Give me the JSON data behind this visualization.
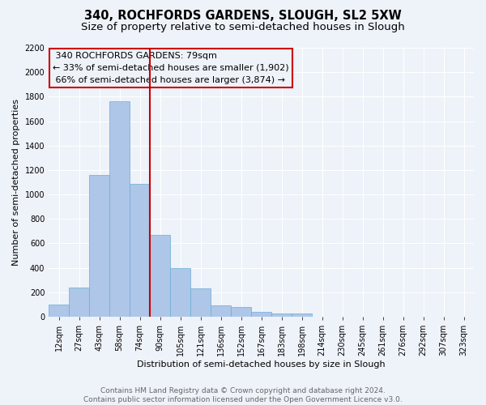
{
  "title": "340, ROCHFORDS GARDENS, SLOUGH, SL2 5XW",
  "subtitle": "Size of property relative to semi-detached houses in Slough",
  "xlabel": "Distribution of semi-detached houses by size in Slough",
  "ylabel": "Number of semi-detached properties",
  "footer_line1": "Contains HM Land Registry data © Crown copyright and database right 2024.",
  "footer_line2": "Contains public sector information licensed under the Open Government Licence v3.0.",
  "bar_labels": [
    "12sqm",
    "27sqm",
    "43sqm",
    "58sqm",
    "74sqm",
    "90sqm",
    "105sqm",
    "121sqm",
    "136sqm",
    "152sqm",
    "167sqm",
    "183sqm",
    "198sqm",
    "214sqm",
    "230sqm",
    "245sqm",
    "261sqm",
    "276sqm",
    "292sqm",
    "307sqm",
    "323sqm"
  ],
  "bar_values": [
    100,
    240,
    1160,
    1760,
    1090,
    670,
    400,
    235,
    90,
    80,
    40,
    30,
    25,
    0,
    0,
    0,
    0,
    0,
    0,
    0,
    0
  ],
  "bar_color": "#aec6e8",
  "bar_edgecolor": "#6aaed6",
  "property_label": "340 ROCHFORDS GARDENS: 79sqm",
  "pct_smaller": 33,
  "count_smaller": 1902,
  "pct_larger": 66,
  "count_larger": 3874,
  "vline_bar_index": 4,
  "ylim": [
    0,
    2200
  ],
  "yticks": [
    0,
    200,
    400,
    600,
    800,
    1000,
    1200,
    1400,
    1600,
    1800,
    2000,
    2200
  ],
  "background_color": "#eef2f9",
  "axes_background": "#eef2f9",
  "grid_color": "#ffffff",
  "annotation_box_edgecolor": "#cc0000",
  "vline_color": "#cc0000",
  "title_fontsize": 10.5,
  "subtitle_fontsize": 9.5,
  "label_fontsize": 8,
  "tick_fontsize": 7,
  "footer_fontsize": 6.5,
  "annot_fontsize": 8
}
